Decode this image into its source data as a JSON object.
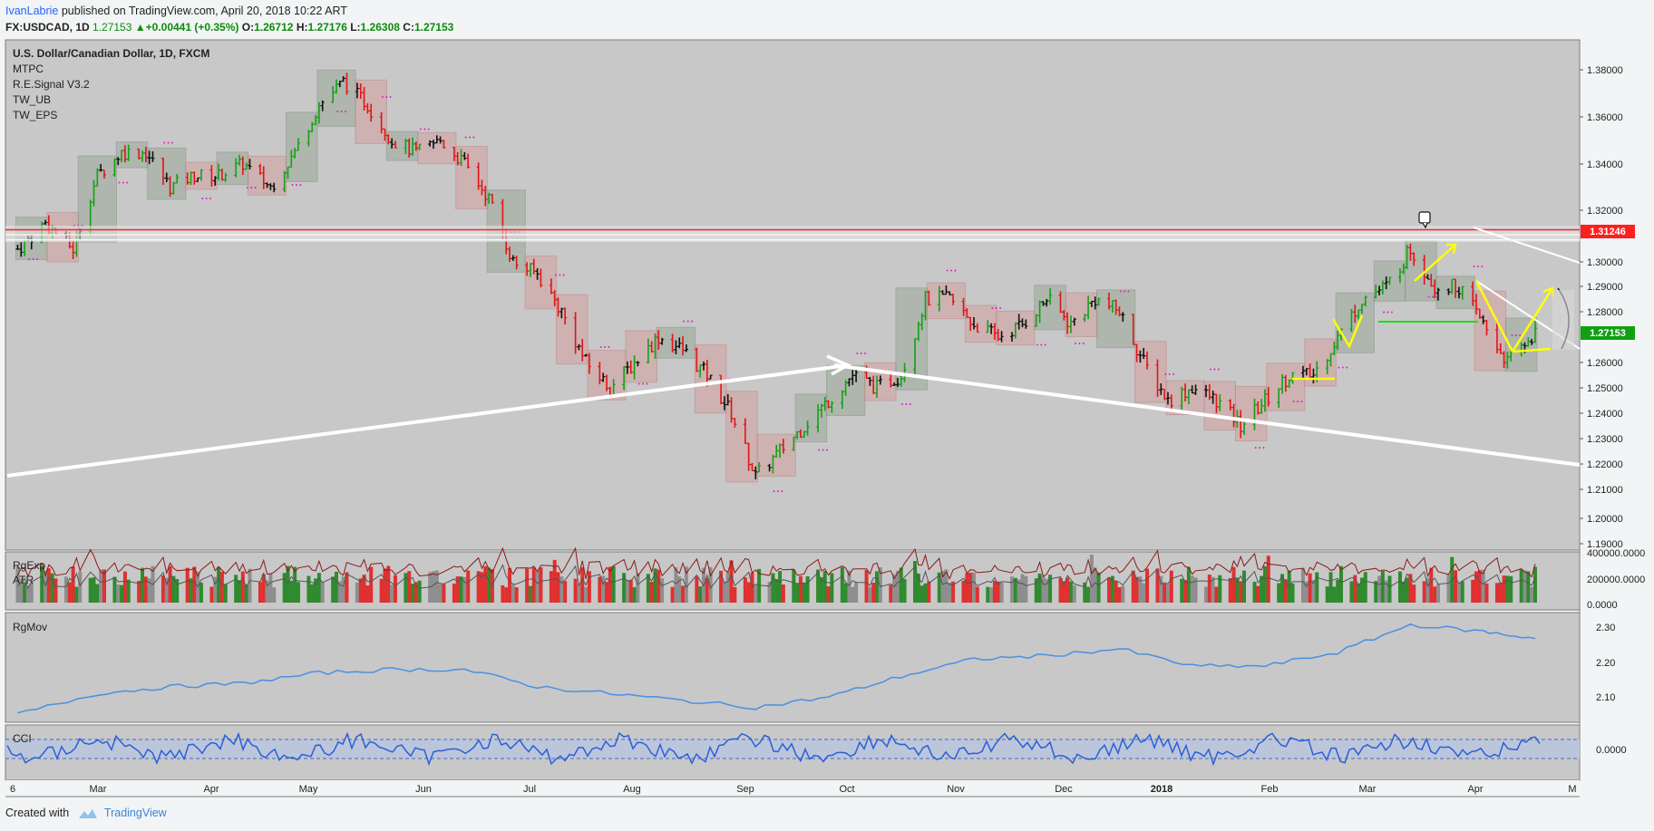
{
  "header": {
    "author": "IvanLabrie",
    "published": "published on TradingView.com, April 20, 2018 10:22 ART"
  },
  "quote": {
    "symbol": "FX:USDCAD, 1D",
    "last": "1.27153",
    "change": "+0.00441 (+0.35%)",
    "o_label": "O:",
    "o": "1.26712",
    "h_label": "H:",
    "h": "1.27176",
    "l_label": "L:",
    "l": "1.26308",
    "c_label": "C:",
    "c": "1.27153",
    "up_color": "#0e8a0e"
  },
  "legend": {
    "title": "U.S. Dollar/Canadian Dollar, 1D, FXCM",
    "indicators": [
      "MTPC",
      "R.E.Signal V3.2",
      "TW_UB",
      "TW_EPS"
    ]
  },
  "panes": {
    "volume_labels": [
      "RgExp",
      "ATR"
    ],
    "rgmov_label": "RgMov",
    "cci_label": "CCI"
  },
  "badges": {
    "resistance": "1.31246",
    "last": "1.27153",
    "resistance_color": "#ff1f1f",
    "last_color": "#10a010"
  },
  "footer": {
    "created": "Created with",
    "brand": "TradingView"
  },
  "chart_data": [
    {
      "type": "candlestick",
      "title": "U.S. Dollar/Canadian Dollar, 1D, FXCM",
      "x_ticks": [
        "6",
        "Mar",
        "Apr",
        "May",
        "Jun",
        "Jul",
        "Aug",
        "Sep",
        "Oct",
        "Nov",
        "Dec",
        "2018",
        "Feb",
        "Mar",
        "Apr",
        "M"
      ],
      "y_ticks": [
        "1.38000",
        "1.36000",
        "1.34000",
        "1.32000",
        "1.30000",
        "1.29000",
        "1.28000",
        "1.26000",
        "1.25000",
        "1.24000",
        "1.23000",
        "1.22000",
        "1.21000",
        "1.20000",
        "1.19000"
      ],
      "ylim": [
        1.19,
        1.385
      ],
      "close_path": [
        [
          "2017-02-06",
          1.305
        ],
        [
          "2017-02-14",
          1.315
        ],
        [
          "2017-02-22",
          1.305
        ],
        [
          "2017-03-01",
          1.335
        ],
        [
          "2017-03-08",
          1.345
        ],
        [
          "2017-03-15",
          1.345
        ],
        [
          "2017-03-22",
          1.33
        ],
        [
          "2017-03-29",
          1.335
        ],
        [
          "2017-04-05",
          1.335
        ],
        [
          "2017-04-12",
          1.34
        ],
        [
          "2017-04-20",
          1.33
        ],
        [
          "2017-04-27",
          1.345
        ],
        [
          "2017-05-04",
          1.365
        ],
        [
          "2017-05-11",
          1.375
        ],
        [
          "2017-05-18",
          1.365
        ],
        [
          "2017-05-25",
          1.35
        ],
        [
          "2017-06-01",
          1.345
        ],
        [
          "2017-06-08",
          1.35
        ],
        [
          "2017-06-15",
          1.34
        ],
        [
          "2017-06-22",
          1.325
        ],
        [
          "2017-06-29",
          1.3
        ],
        [
          "2017-07-06",
          1.295
        ],
        [
          "2017-07-13",
          1.28
        ],
        [
          "2017-07-20",
          1.26
        ],
        [
          "2017-07-27",
          1.25
        ],
        [
          "2017-08-03",
          1.26
        ],
        [
          "2017-08-10",
          1.27
        ],
        [
          "2017-08-17",
          1.265
        ],
        [
          "2017-08-24",
          1.255
        ],
        [
          "2017-08-31",
          1.24
        ],
        [
          "2017-09-07",
          1.215
        ],
        [
          "2017-09-14",
          1.225
        ],
        [
          "2017-09-21",
          1.235
        ],
        [
          "2017-09-28",
          1.245
        ],
        [
          "2017-10-05",
          1.255
        ],
        [
          "2017-10-12",
          1.25
        ],
        [
          "2017-10-19",
          1.255
        ],
        [
          "2017-10-26",
          1.285
        ],
        [
          "2017-11-02",
          1.285
        ],
        [
          "2017-11-09",
          1.275
        ],
        [
          "2017-11-16",
          1.27
        ],
        [
          "2017-11-23",
          1.275
        ],
        [
          "2017-11-30",
          1.285
        ],
        [
          "2017-12-07",
          1.275
        ],
        [
          "2017-12-14",
          1.285
        ],
        [
          "2017-12-21",
          1.28
        ],
        [
          "2017-12-28",
          1.26
        ],
        [
          "2018-01-04",
          1.245
        ],
        [
          "2018-01-11",
          1.25
        ],
        [
          "2018-01-18",
          1.245
        ],
        [
          "2018-01-25",
          1.235
        ],
        [
          "2018-02-01",
          1.245
        ],
        [
          "2018-02-08",
          1.255
        ],
        [
          "2018-02-15",
          1.255
        ],
        [
          "2018-02-22",
          1.27
        ],
        [
          "2018-03-01",
          1.285
        ],
        [
          "2018-03-08",
          1.29
        ],
        [
          "2018-03-15",
          1.305
        ],
        [
          "2018-03-22",
          1.29
        ],
        [
          "2018-03-29",
          1.29
        ],
        [
          "2018-04-05",
          1.275
        ],
        [
          "2018-04-12",
          1.26
        ],
        [
          "2018-04-20",
          1.27153
        ]
      ],
      "horizontal_levels": [
        1.31246,
        1.3105,
        1.3085,
        1.2762
      ],
      "last_value": 1.27153
    },
    {
      "type": "bar",
      "title": "",
      "indicators": [
        "RgExp",
        "ATR"
      ],
      "y_ticks": [
        "400000.0000",
        "200000.0000",
        "0.0000"
      ],
      "ylim": [
        0,
        400000
      ],
      "values_shape": "daily volume bars mostly 150000-300000, colored green/red/gray"
    },
    {
      "type": "line",
      "title": "",
      "indicator": "RgMov",
      "y_ticks": [
        "2.30",
        "2.20",
        "2.10"
      ],
      "ylim": [
        2.04,
        2.33
      ],
      "points": [
        [
          "2017-02-06",
          2.06
        ],
        [
          "2017-03-01",
          2.12
        ],
        [
          "2017-03-22",
          2.14
        ],
        [
          "2017-04-12",
          2.15
        ],
        [
          "2017-05-04",
          2.18
        ],
        [
          "2017-05-25",
          2.19
        ],
        [
          "2017-06-15",
          2.19
        ],
        [
          "2017-07-06",
          2.14
        ],
        [
          "2017-07-27",
          2.12
        ],
        [
          "2017-08-17",
          2.1
        ],
        [
          "2017-09-07",
          2.08
        ],
        [
          "2017-09-28",
          2.11
        ],
        [
          "2017-10-19",
          2.17
        ],
        [
          "2017-11-09",
          2.22
        ],
        [
          "2017-11-30",
          2.23
        ],
        [
          "2017-12-21",
          2.25
        ],
        [
          "2018-01-11",
          2.2
        ],
        [
          "2018-02-01",
          2.2
        ],
        [
          "2018-02-22",
          2.24
        ],
        [
          "2018-03-15",
          2.32
        ],
        [
          "2018-04-05",
          2.3
        ],
        [
          "2018-04-20",
          2.28
        ]
      ]
    },
    {
      "type": "line",
      "title": "",
      "indicator": "CCI",
      "y_ticks": [
        "0.0000"
      ],
      "values_shape": "oscillator fluctuating around 0 between two dashed bands"
    }
  ]
}
